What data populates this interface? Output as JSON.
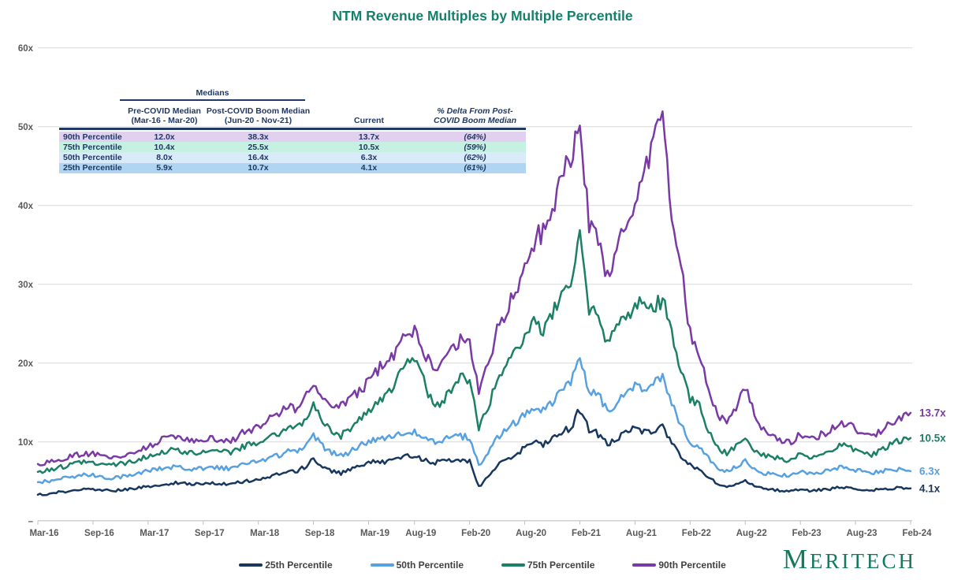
{
  "title": "NTM Revenue Multiples by Multiple Percentile",
  "title_color": "#15806b",
  "table": {
    "group_header": "Medians",
    "columns": [
      {
        "line1": "Pre-COVID Median",
        "line2": "(Mar-16 - Mar-20)",
        "italic": false
      },
      {
        "line1": "Post-COVID Boom Median",
        "line2": "(Jun-20 - Nov-21)",
        "italic": false
      },
      {
        "line1": "Current",
        "line2": "",
        "italic": false
      },
      {
        "line1": "% Delta From Post-",
        "line2": "COVID Boom Median",
        "italic": true
      }
    ],
    "rows": [
      {
        "label": "90th Percentile",
        "pre_covid": "12.0x",
        "post_covid": "38.3x",
        "current": "13.7x",
        "delta": "(64%)",
        "bg": "#e2d0f0"
      },
      {
        "label": "75th Percentile",
        "pre_covid": "10.4x",
        "post_covid": "25.5x",
        "current": "10.5x",
        "delta": "(59%)",
        "bg": "#c6f0e2"
      },
      {
        "label": "50th Percentile",
        "pre_covid": "8.0x",
        "post_covid": "16.4x",
        "current": "6.3x",
        "delta": "(62%)",
        "bg": "#d9eaf8"
      },
      {
        "label": "25th Percentile",
        "pre_covid": "5.9x",
        "post_covid": "10.7x",
        "current": "4.1x",
        "delta": "(61%)",
        "bg": "#b0d5f2"
      }
    ],
    "text_color": "#1f3864"
  },
  "chart_data": {
    "type": "line",
    "title": "NTM Revenue Multiples by Multiple Percentile",
    "x_interval": "monthly",
    "x_start": "Mar-16",
    "x_end": "Feb-24",
    "x_tick_labels": [
      "Mar-16",
      "Sep-16",
      "Mar-17",
      "Sep-17",
      "Mar-18",
      "Sep-18",
      "Mar-19",
      "Aug-19",
      "Feb-20",
      "Aug-20",
      "Feb-21",
      "Aug-21",
      "Feb-22",
      "Aug-22",
      "Feb-23",
      "Aug-23",
      "Feb-24"
    ],
    "x_tick_month_index": [
      0,
      6,
      12,
      18,
      24,
      30,
      36,
      41,
      47,
      53,
      59,
      65,
      71,
      77,
      83,
      89,
      95
    ],
    "y_tick_labels": [
      "60x",
      "50x",
      "40x",
      "30x",
      "20x",
      "10x",
      "–"
    ],
    "y_tick_values": [
      60,
      50,
      40,
      30,
      20,
      10,
      0
    ],
    "ylim": [
      0,
      60
    ],
    "grid": "horizontal",
    "legend_position": "bottom",
    "series": [
      {
        "name": "25th Percentile",
        "color": "#17375e",
        "end_label": "4.1x",
        "values": [
          3.3,
          3.4,
          3.6,
          3.7,
          3.9,
          4.0,
          4.0,
          3.9,
          3.8,
          3.9,
          4.0,
          4.2,
          4.4,
          4.5,
          4.7,
          4.8,
          4.7,
          4.6,
          4.7,
          4.8,
          4.7,
          4.6,
          4.9,
          5.1,
          5.3,
          5.5,
          5.9,
          6.3,
          6.2,
          6.8,
          7.8,
          6.9,
          6.3,
          6.0,
          6.5,
          7.0,
          7.4,
          7.6,
          7.5,
          7.8,
          8.3,
          8.3,
          7.8,
          7.3,
          7.5,
          7.7,
          7.8,
          7.6,
          4.3,
          5.5,
          7.0,
          7.8,
          8.5,
          9.2,
          10.0,
          9.6,
          10.4,
          11.3,
          11.8,
          14.2,
          11.5,
          11.0,
          9.8,
          10.5,
          11.0,
          11.8,
          11.3,
          11.5,
          11.8,
          10.0,
          8.2,
          7.0,
          6.5,
          5.5,
          4.6,
          4.3,
          4.6,
          5.0,
          4.4,
          4.0,
          3.9,
          3.8,
          3.7,
          4.0,
          3.8,
          3.9,
          4.0,
          4.2,
          4.3,
          4.1,
          3.9,
          3.9,
          4.0,
          4.1,
          4.2,
          4.1
        ]
      },
      {
        "name": "50th Percentile",
        "color": "#58a1e0",
        "end_label": "6.3x",
        "values": [
          4.9,
          5.0,
          5.2,
          5.4,
          5.6,
          5.8,
          5.8,
          5.6,
          5.4,
          5.6,
          5.8,
          6.0,
          6.3,
          6.5,
          6.7,
          6.9,
          6.7,
          6.5,
          6.7,
          6.9,
          6.7,
          6.6,
          7.0,
          7.3,
          7.5,
          7.8,
          8.2,
          8.8,
          8.6,
          9.5,
          10.8,
          9.5,
          8.6,
          8.2,
          8.8,
          9.5,
          10.0,
          10.3,
          10.5,
          11.0,
          11.3,
          11.3,
          10.5,
          10.0,
          10.3,
          10.5,
          10.8,
          10.5,
          7.0,
          8.5,
          10.5,
          11.5,
          12.5,
          13.5,
          14.5,
          14.0,
          15.2,
          16.5,
          17.2,
          21.2,
          16.5,
          16.0,
          14.0,
          15.0,
          16.0,
          17.5,
          17.0,
          17.5,
          18.0,
          15.0,
          12.0,
          10.0,
          9.5,
          8.0,
          6.6,
          6.2,
          6.8,
          7.5,
          6.5,
          6.0,
          5.9,
          5.8,
          5.8,
          6.3,
          6.0,
          6.1,
          6.3,
          6.7,
          6.8,
          6.4,
          6.2,
          6.1,
          6.3,
          6.5,
          6.5,
          6.3
        ]
      },
      {
        "name": "75th Percentile",
        "color": "#1c8066",
        "end_label": "10.5x",
        "values": [
          6.2,
          6.4,
          6.7,
          6.9,
          7.2,
          7.5,
          7.5,
          7.2,
          7.0,
          7.2,
          7.5,
          7.8,
          8.2,
          8.5,
          8.8,
          9.0,
          8.8,
          8.6,
          8.8,
          9.0,
          8.8,
          8.6,
          9.2,
          9.6,
          10.0,
          10.4,
          11.0,
          11.8,
          11.5,
          12.5,
          14.8,
          12.5,
          11.2,
          10.8,
          11.8,
          13.0,
          14.0,
          15.0,
          16.0,
          17.5,
          20.0,
          21.0,
          18.0,
          14.5,
          15.0,
          16.5,
          18.2,
          18.0,
          11.5,
          14.5,
          17.5,
          19.5,
          21.5,
          24.0,
          25.2,
          24.5,
          26.0,
          28.5,
          30.0,
          35.5,
          27.0,
          26.0,
          22.5,
          24.5,
          26.0,
          27.5,
          27.0,
          27.5,
          28.0,
          23.5,
          19.0,
          15.5,
          14.5,
          11.5,
          9.2,
          8.6,
          9.4,
          10.3,
          9.0,
          8.3,
          8.0,
          7.8,
          7.7,
          8.5,
          8.2,
          8.4,
          8.7,
          9.5,
          9.7,
          9.0,
          8.6,
          8.4,
          9.0,
          9.8,
          10.2,
          10.5
        ]
      },
      {
        "name": "90th Percentile",
        "color": "#7a3aa6",
        "end_label": "13.7x",
        "values": [
          7.2,
          7.4,
          7.7,
          8.0,
          8.3,
          8.5,
          8.5,
          8.2,
          8.0,
          8.3,
          8.6,
          9.0,
          9.5,
          10.0,
          10.5,
          10.8,
          10.3,
          10.0,
          10.3,
          10.5,
          10.2,
          10.0,
          11.0,
          11.5,
          12.0,
          12.6,
          13.5,
          14.5,
          14.0,
          15.5,
          17.3,
          15.5,
          14.0,
          14.5,
          15.5,
          16.5,
          17.5,
          19.0,
          20.5,
          21.5,
          23.5,
          24.5,
          21.5,
          19.0,
          20.5,
          21.5,
          23.0,
          22.5,
          16.5,
          20.0,
          24.0,
          26.5,
          29.5,
          32.0,
          35.5,
          36.5,
          39.5,
          43.5,
          46.0,
          50.3,
          38.0,
          36.5,
          30.5,
          34.5,
          37.0,
          41.0,
          43.5,
          47.0,
          52.3,
          38.0,
          32.0,
          24.0,
          21.0,
          17.0,
          13.5,
          12.5,
          14.5,
          16.8,
          13.5,
          11.5,
          10.8,
          10.2,
          10.0,
          11.0,
          10.5,
          10.8,
          11.2,
          12.3,
          12.5,
          11.5,
          11.0,
          10.8,
          11.5,
          12.5,
          13.2,
          13.7
        ]
      }
    ],
    "axis_text_color": "#595959",
    "grid_color": "#d9d9d9",
    "axis_line_color": "#bfbfbf"
  },
  "legend": {
    "items": [
      {
        "label": "25th Percentile",
        "color": "#17375e"
      },
      {
        "label": "50th Percentile",
        "color": "#58a1e0"
      },
      {
        "label": "75th Percentile",
        "color": "#1c8066"
      },
      {
        "label": "90th Percentile",
        "color": "#7a3aa6"
      }
    ]
  },
  "logo": {
    "text": "MERITECH",
    "color": "#15795c"
  }
}
